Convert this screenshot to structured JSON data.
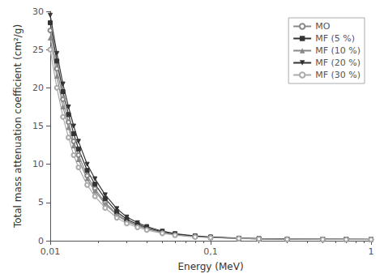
{
  "chart_data": {
    "type": "line",
    "xlabel": "Energy (MeV)",
    "ylabel": "Total mass attenuation coefficient (cm²/g)",
    "log": "x",
    "x": [
      0.01,
      0.011,
      0.012,
      0.013,
      0.014,
      0.015,
      0.017,
      0.019,
      0.022,
      0.026,
      0.03,
      0.035,
      0.04,
      0.05,
      0.06,
      0.08,
      0.1,
      0.15,
      0.2,
      0.3,
      0.5,
      0.7,
      1.0
    ],
    "xlim": [
      0.01,
      1.0
    ],
    "xticks": [
      {
        "value": 0.01,
        "label": "0,01"
      },
      {
        "value": 0.1,
        "label": "0,1"
      },
      1
    ],
    "ylim": [
      0,
      30
    ],
    "yticks": [
      0,
      5,
      10,
      15,
      20,
      25,
      30
    ],
    "grid": false,
    "legend": "upper right",
    "series": [
      {
        "name": "MO",
        "color": "#888888",
        "marker": "circle-open",
        "values": [
          27.5,
          22.5,
          18.5,
          15.5,
          13.0,
          11.2,
          8.5,
          6.8,
          5.0,
          3.5,
          2.6,
          2.0,
          1.6,
          1.1,
          0.8,
          0.55,
          0.44,
          0.3,
          0.25,
          0.2,
          0.18,
          0.17,
          0.16
        ]
      },
      {
        "name": "MF (5 %)",
        "color": "#333333",
        "marker": "square",
        "values": [
          28.5,
          23.5,
          19.5,
          16.5,
          14.0,
          12.0,
          9.2,
          7.4,
          5.5,
          3.8,
          2.8,
          2.15,
          1.7,
          1.15,
          0.85,
          0.57,
          0.45,
          0.31,
          0.255,
          0.205,
          0.183,
          0.172,
          0.162
        ]
      },
      {
        "name": "MF (10 %)",
        "color": "#888888",
        "marker": "triangle",
        "values": [
          26.5,
          21.5,
          17.5,
          14.8,
          12.4,
          10.6,
          8.1,
          6.5,
          4.8,
          3.35,
          2.5,
          1.93,
          1.55,
          1.06,
          0.78,
          0.53,
          0.43,
          0.295,
          0.245,
          0.197,
          0.177,
          0.167,
          0.157
        ]
      },
      {
        "name": "MF (20 %)",
        "color": "#333333",
        "marker": "triangle-down",
        "values": [
          29.5,
          24.5,
          20.5,
          17.5,
          15.0,
          13.0,
          10.0,
          8.1,
          6.0,
          4.2,
          3.1,
          2.35,
          1.85,
          1.25,
          0.92,
          0.62,
          0.48,
          0.33,
          0.27,
          0.215,
          0.19,
          0.178,
          0.167
        ]
      },
      {
        "name": "MF (30 %)",
        "color": "#aaaaaa",
        "marker": "circle-open",
        "values": [
          25.0,
          20.0,
          16.2,
          13.5,
          11.2,
          9.6,
          7.3,
          5.8,
          4.3,
          3.0,
          2.25,
          1.75,
          1.4,
          0.97,
          0.72,
          0.49,
          0.4,
          0.28,
          0.23,
          0.188,
          0.17,
          0.161,
          0.152
        ]
      }
    ]
  }
}
